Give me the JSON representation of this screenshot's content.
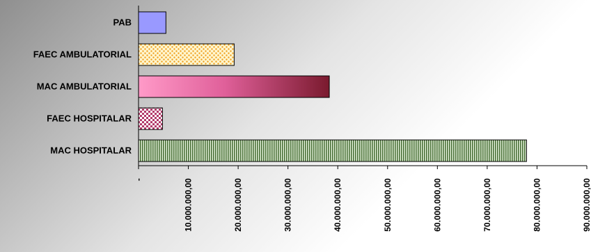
{
  "chart_data": {
    "type": "bar",
    "orientation": "horizontal",
    "categories": [
      "PAB",
      "FAEC AMBULATORIAL",
      "MAC AMBULATORIAL",
      "FAEC HOSPITALAR",
      "MAC HOSPITALAR"
    ],
    "values": [
      5500000,
      19200000,
      38300000,
      4800000,
      77900000
    ],
    "xlim": [
      0,
      90000000
    ],
    "x_ticks": [
      0,
      10000000,
      20000000,
      30000000,
      40000000,
      50000000,
      60000000,
      70000000,
      80000000,
      90000000
    ],
    "x_tick_labels": [
      "-",
      "10.000.000,00",
      "20.000.000,00",
      "30.000.000,00",
      "40.000.000,00",
      "50.000.000,00",
      "60.000.000,00",
      "70.000.000,00",
      "80.000.000,00",
      "90.000.000,00"
    ],
    "title": "",
    "xlabel": "",
    "ylabel": "",
    "grid": false,
    "legend": "none",
    "colors": {
      "PAB": "#9999ff",
      "FAEC AMBULATORIAL": "#f5a623",
      "MAC AMBULATORIAL": "#b0305a",
      "FAEC HOSPITALAR": "#993366",
      "MAC HOSPITALAR": "#4f7a3e"
    }
  }
}
